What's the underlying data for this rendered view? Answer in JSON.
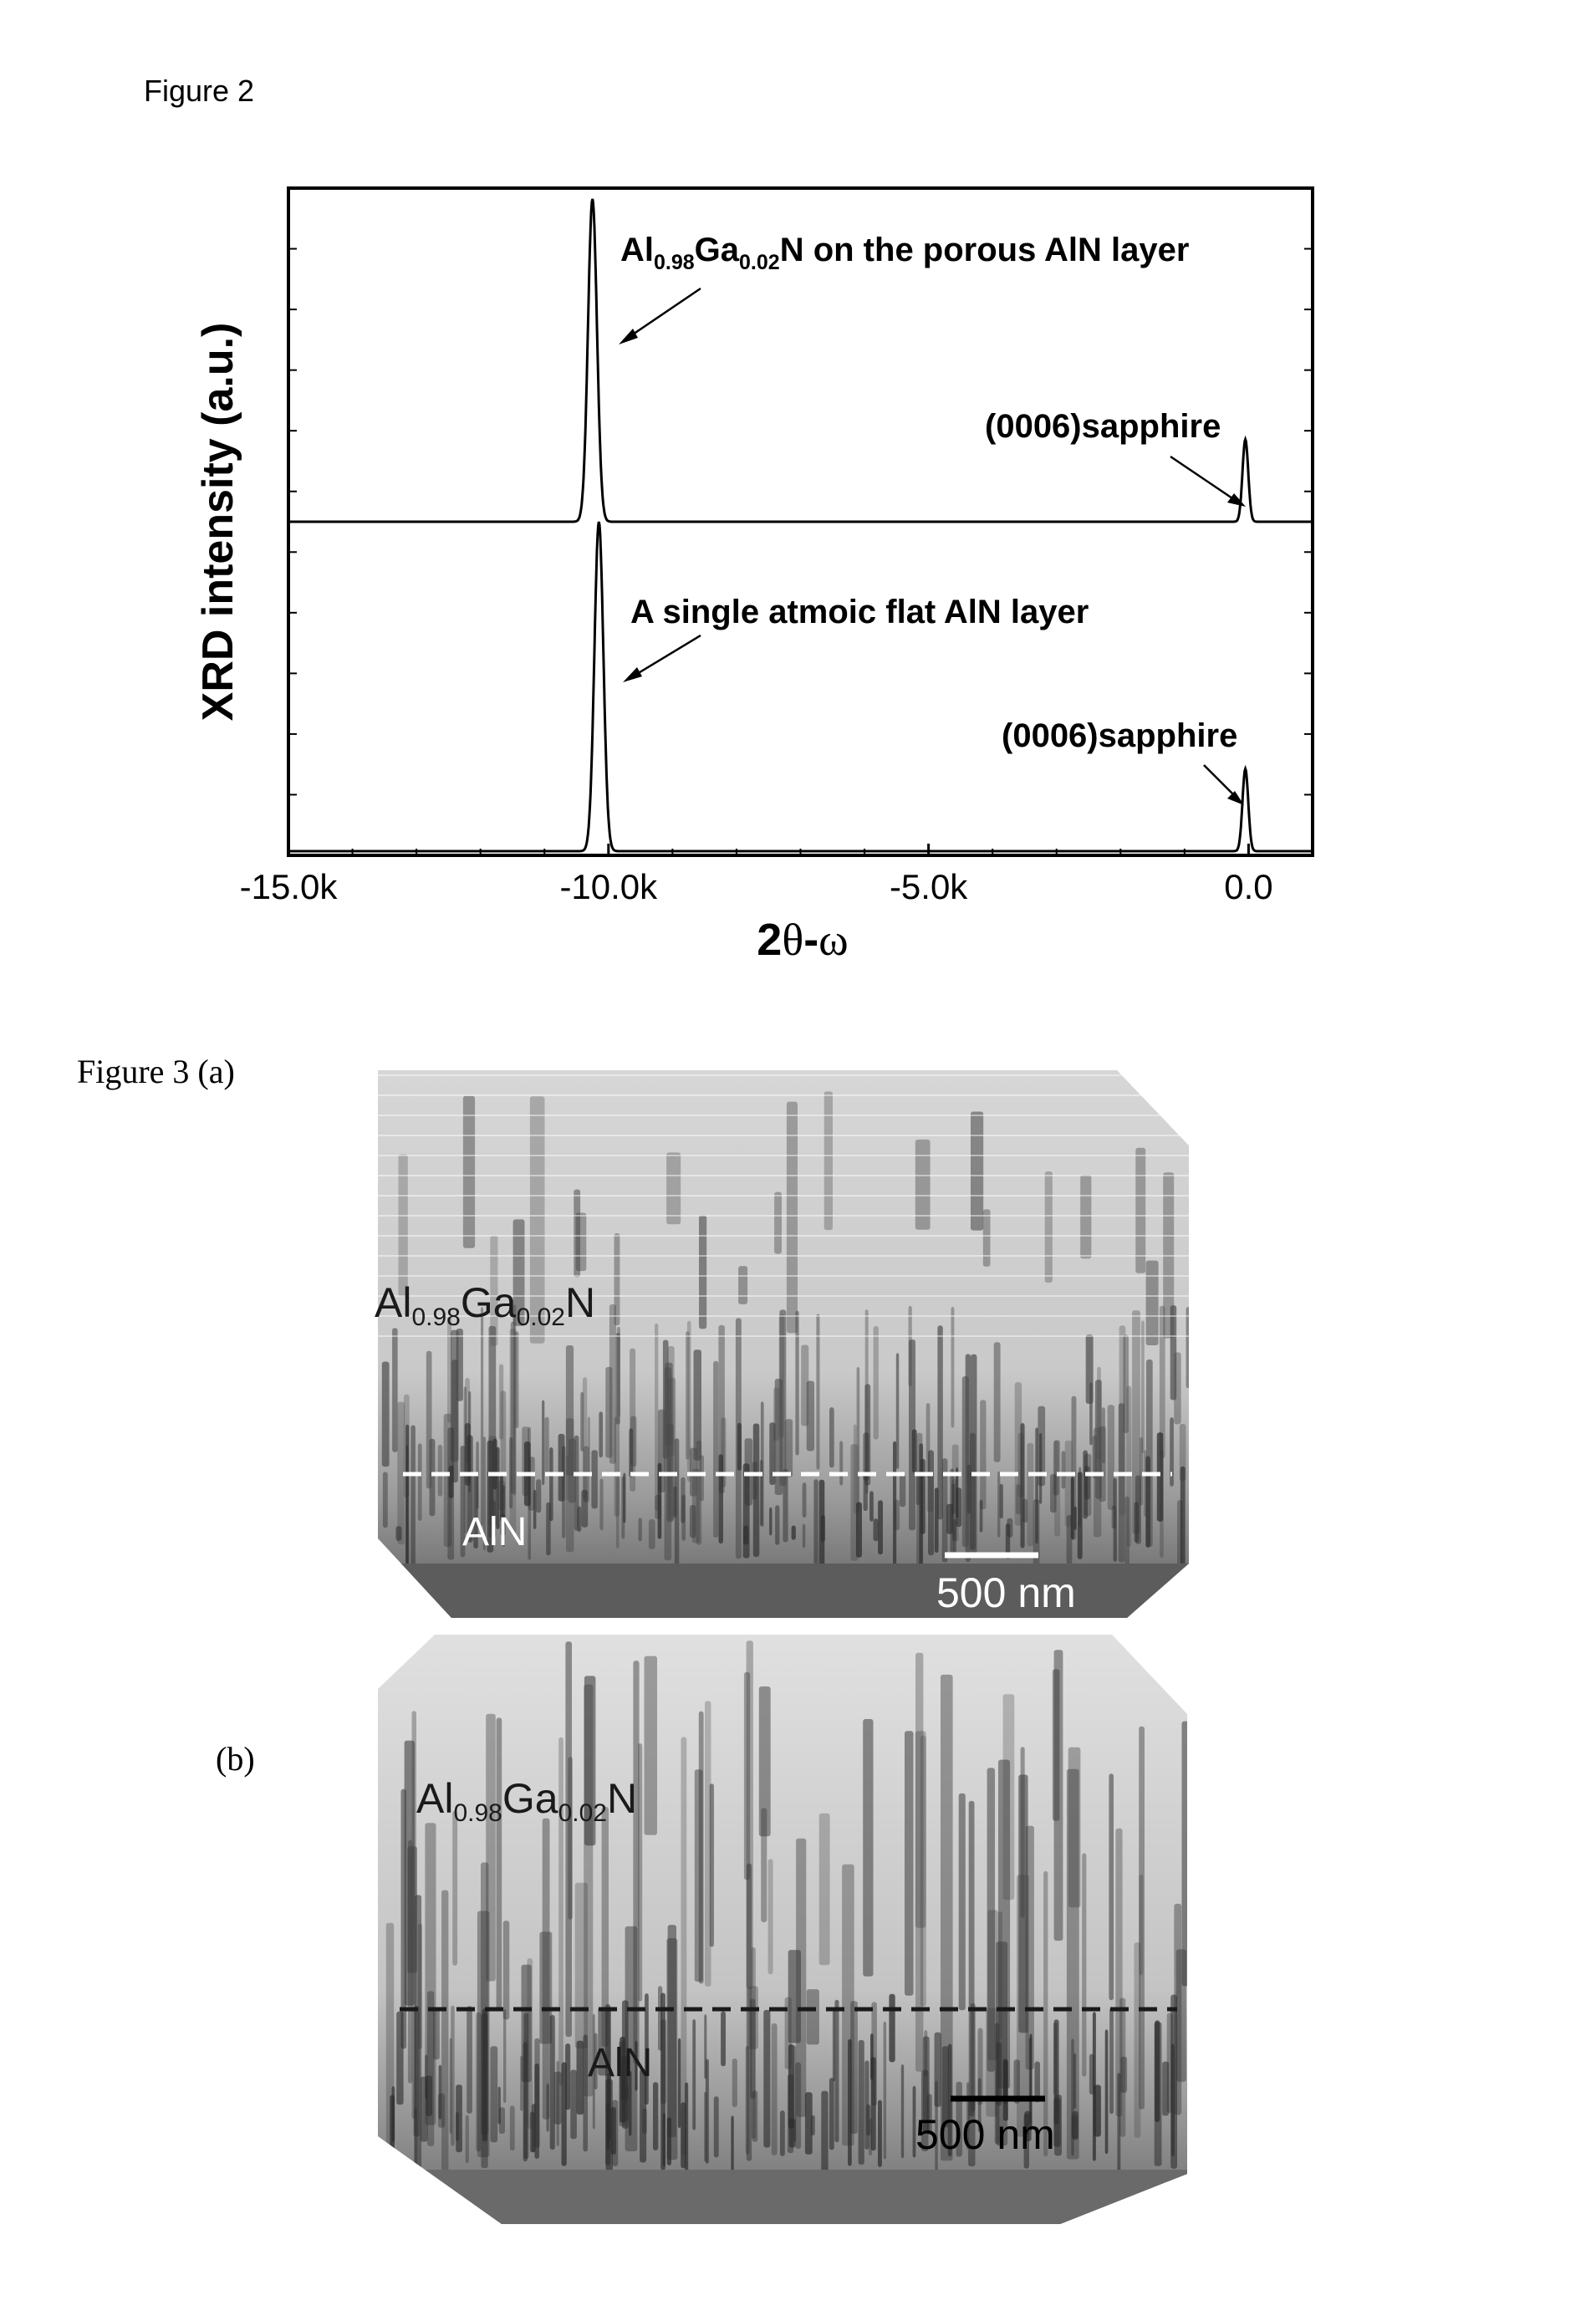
{
  "figure2": {
    "caption": "Figure 2",
    "chart_data": {
      "type": "line",
      "xlabel_prefix": "2",
      "xlabel_theta": "θ",
      "xlabel_dash": "-",
      "xlabel_omega": "ω",
      "ylabel": "XRD intensity (a.u.)",
      "xlim": [
        -15000,
        1000
      ],
      "xticks": [
        -15000,
        -10000,
        -5000,
        0
      ],
      "xtick_labels": [
        "-15.0k",
        "-10.0k",
        "-5.0k",
        "0.0"
      ],
      "series": [
        {
          "offset": 0.5,
          "peaks": [
            {
              "x": -10250,
              "height": 0.49,
              "width": 70
            },
            {
              "x": -50,
              "height": 0.125,
              "width": 45
            }
          ],
          "annotations": [
            {
              "al": "Al",
              "sub1": "0.98",
              "ga": "Ga",
              "sub2": "0.02",
              "rest": "N on the porous AlN layer"
            },
            {
              "text": "(0006)sapphire"
            }
          ]
        },
        {
          "offset": 0.0,
          "peaks": [
            {
              "x": -10150,
              "height": 0.5,
              "width": 70
            },
            {
              "x": -50,
              "height": 0.125,
              "width": 45
            }
          ],
          "annotations": [
            {
              "text": "A single atmoic flat AlN layer"
            },
            {
              "text": "(0006)sapphire"
            }
          ]
        }
      ]
    }
  },
  "figure3": {
    "caption_a": "Figure 3 (a)",
    "caption_b": "(b)",
    "panel_a": {
      "label_top_main1": "Al",
      "label_top_sub1": "0.98",
      "label_top_main2": "Ga",
      "label_top_sub2": "0.02",
      "label_top_main3": "N",
      "label_bottom": "AlN",
      "scale_label": "500 nm"
    },
    "panel_b": {
      "label_top_main1": "Al",
      "label_top_sub1": "0.98",
      "label_top_main2": "Ga",
      "label_top_sub2": "0.02",
      "label_top_main3": "N",
      "label_bottom": "AlN",
      "scale_label": "500 nm"
    }
  }
}
